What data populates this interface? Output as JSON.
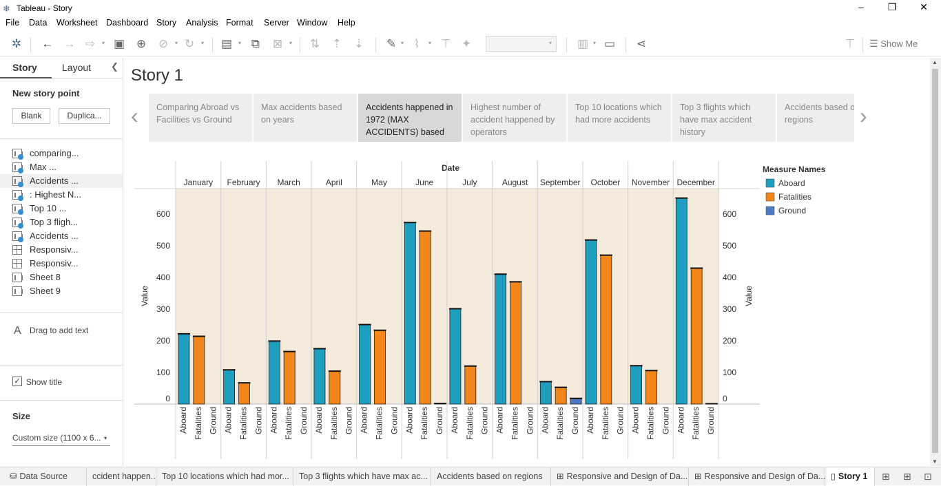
{
  "window": {
    "title": "Tableau - Story",
    "controls": [
      "–",
      "❐",
      "✕"
    ]
  },
  "menu": [
    "File",
    "Data",
    "Worksheet",
    "Dashboard",
    "Story",
    "Analysis",
    "Format",
    "Server",
    "Window",
    "Help"
  ],
  "toolbar": {
    "show_me": "Show Me"
  },
  "left_pane": {
    "tab_story": "Story",
    "tab_layout": "Layout",
    "new_story_point": "New story point",
    "blank_button": "Blank",
    "duplicate_button": "Duplica...",
    "sheets": [
      {
        "label": "comparing...",
        "type": "story"
      },
      {
        "label": "Max ...",
        "type": "story"
      },
      {
        "label": "Accidents ...",
        "type": "story",
        "active": true
      },
      {
        "label": ": Highest N...",
        "type": "story"
      },
      {
        "label": "Top 10 ...",
        "type": "story"
      },
      {
        "label": "Top 3 fligh...",
        "type": "story"
      },
      {
        "label": "Accidents ...",
        "type": "story"
      },
      {
        "label": "Responsiv...",
        "type": "dashboard"
      },
      {
        "label": "Responsiv...",
        "type": "dashboard"
      },
      {
        "label": "Sheet 8",
        "type": "sheet"
      },
      {
        "label": "Sheet 9",
        "type": "sheet"
      }
    ],
    "drag_text": "Drag to add text",
    "show_title": "Show title",
    "size_heading": "Size",
    "size_value": "Custom size (1100 x 6..."
  },
  "story": {
    "title": "Story 1",
    "points": [
      {
        "text": "Comparing Abroad vs Facilities vs Ground",
        "active": false
      },
      {
        "text": "Max accidents based on years",
        "active": false
      },
      {
        "text": "Accidents happened in 1972 (MAX ACCIDENTS) based on",
        "active": true
      },
      {
        "text": "Highest number of accident happened by operators",
        "active": false
      },
      {
        "text": "Top 10 locations which had more accidents",
        "active": false
      },
      {
        "text": "Top 3 flights which have max accident history",
        "active": false
      },
      {
        "text": "Accidents based on regions",
        "active": false
      }
    ],
    "prev": "‹",
    "next": "›"
  },
  "chart_data": {
    "type": "bar",
    "column_header": "Date",
    "categories": [
      "January",
      "February",
      "March",
      "April",
      "May",
      "June",
      "July",
      "August",
      "September",
      "October",
      "November",
      "December"
    ],
    "measures": [
      "Aboard",
      "Fatalities",
      "Ground"
    ],
    "series": [
      {
        "name": "Aboard",
        "color": "#1f9fc0",
        "values": [
          222,
          108,
          199,
          175,
          251,
          573,
          301,
          410,
          71,
          518,
          121,
          650
        ]
      },
      {
        "name": "Fatalities",
        "color": "#f2861a",
        "values": [
          214,
          67,
          166,
          104,
          233,
          546,
          120,
          386,
          53,
          470,
          106,
          429
        ]
      },
      {
        "name": "Ground",
        "color": "#4e79c5",
        "values": [
          0,
          0,
          0,
          0,
          0,
          2,
          0,
          0,
          18,
          0,
          0,
          1
        ]
      }
    ],
    "ylabel": "Value",
    "ylabel_right": "Value",
    "yticks": [
      0,
      100,
      200,
      300,
      400,
      500,
      600
    ],
    "ylim": [
      0,
      680
    ],
    "legend_title": "Measure Names",
    "legend_position": "right",
    "background": "#f5ebdc"
  },
  "bottom_tabs": [
    {
      "label": "Data Source",
      "icon": "⛁"
    },
    {
      "label": "ccident happen...",
      "icon": ""
    },
    {
      "label": "Top 10 locations which had mor...",
      "icon": ""
    },
    {
      "label": "Top 3 flights which have max ac...",
      "icon": ""
    },
    {
      "label": "Accidents based on regions",
      "icon": ""
    },
    {
      "label": "Responsive and Design of Da...",
      "icon": "⊞"
    },
    {
      "label": "Responsive and Design of Da...",
      "icon": "⊞"
    },
    {
      "label": "Story 1",
      "icon": "▯",
      "active": true
    }
  ]
}
